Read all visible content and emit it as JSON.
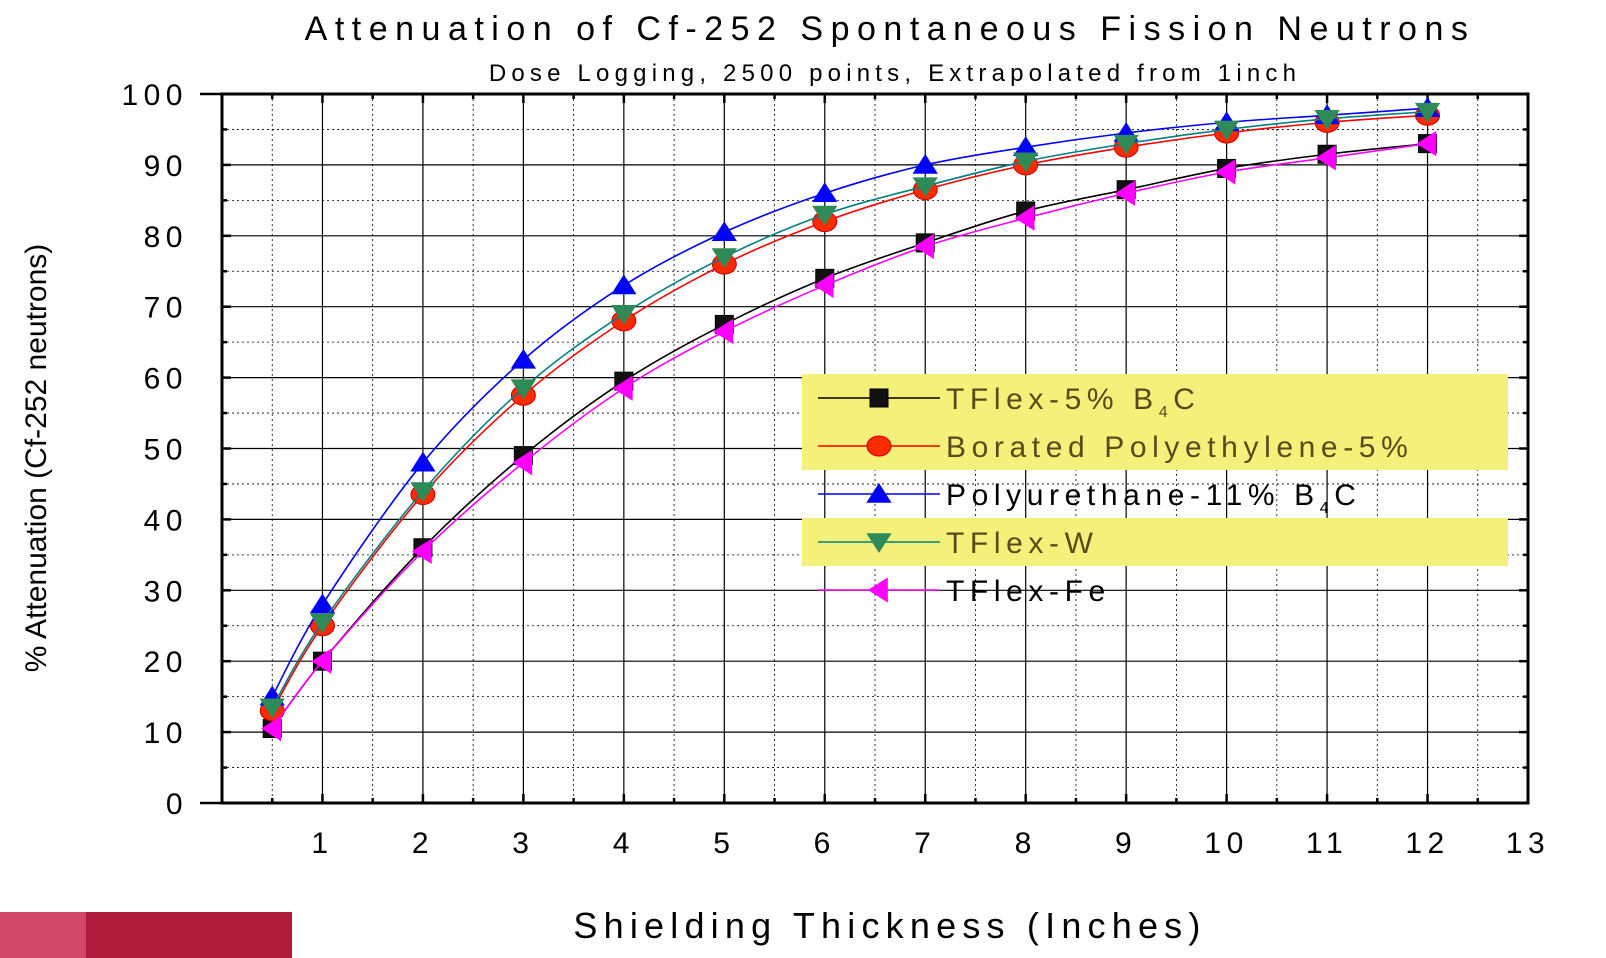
{
  "chart_data": {
    "type": "line",
    "title": "Attenuation of Cf-252 Spontaneous Fission Neutrons",
    "subtitle": "Dose Logging, 2500 points, Extrapolated from 1inch",
    "xlabel": "Shielding Thickness (Inches)",
    "ylabel": "% Attenuation (Cf-252 neutrons)",
    "xlim": [
      0,
      13
    ],
    "ylim": [
      0,
      100
    ],
    "x_ticks": [
      "1",
      "2",
      "3",
      "4",
      "5",
      "6",
      "7",
      "8",
      "9",
      "10",
      "11",
      "12",
      "13"
    ],
    "y_ticks": [
      "0",
      "10",
      "20",
      "30",
      "40",
      "50",
      "60",
      "70",
      "80",
      "90",
      "100"
    ],
    "grid": true,
    "legend_position": "center-right",
    "x": [
      0.5,
      1,
      2,
      3,
      4,
      5,
      6,
      7,
      8,
      9,
      10,
      11,
      12
    ],
    "series": [
      {
        "name": "TFlex-5% B4C",
        "legend_main": "TFlex-5% B",
        "legend_sub": "4",
        "legend_tail": "C",
        "marker": "square",
        "line_color": "#000000",
        "marker_color": "#111111",
        "highlight": true,
        "values": [
          10.5,
          20,
          36,
          49,
          59.5,
          67.5,
          74,
          79,
          83.5,
          86.5,
          89.5,
          91.5,
          93
        ]
      },
      {
        "name": "Borated Polyethylene-5%",
        "legend_main": "Borated Polyethylene-5%",
        "legend_sub": "",
        "legend_tail": "",
        "marker": "circle",
        "line_color": "#ff0000",
        "marker_color": "#ff2a00",
        "highlight": true,
        "values": [
          13,
          25,
          43.5,
          57.5,
          68,
          76,
          82,
          86.5,
          90,
          92.5,
          94.5,
          96,
          97
        ]
      },
      {
        "name": "Polyurethane-11% B4C",
        "legend_main": "Polyurethane-11% B",
        "legend_sub": "4",
        "legend_tail": "C",
        "marker": "triangle-up",
        "line_color": "#0000ff",
        "marker_color": "#0000ff",
        "highlight": false,
        "values": [
          15,
          28,
          48,
          62.5,
          73,
          80.5,
          86,
          90,
          92.5,
          94.5,
          96,
          97,
          98
        ]
      },
      {
        "name": "TFlex-W",
        "legend_main": "TFlex-W",
        "legend_sub": "",
        "legend_tail": "",
        "marker": "triangle-down",
        "line_color": "#008080",
        "marker_color": "#2e8b57",
        "highlight": true,
        "values": [
          13.5,
          25.5,
          44,
          58.5,
          69,
          77,
          83,
          87,
          90.5,
          93,
          95,
          96.5,
          97.5
        ]
      },
      {
        "name": "TFlex-Fe",
        "legend_main": "TFlex-Fe",
        "legend_sub": "",
        "legend_tail": "",
        "marker": "triangle-left",
        "line_color": "#ff00ff",
        "marker_color": "#ff00ff",
        "highlight": false,
        "values": [
          10.5,
          20,
          35.5,
          48,
          58.5,
          66.5,
          73,
          78.5,
          82.5,
          86,
          89,
          91,
          93
        ]
      }
    ]
  },
  "colors": {
    "legend_highlight": "#f5f07a",
    "corner_bar_light": "#d04a68",
    "corner_bar_dark": "#b01b3c"
  }
}
